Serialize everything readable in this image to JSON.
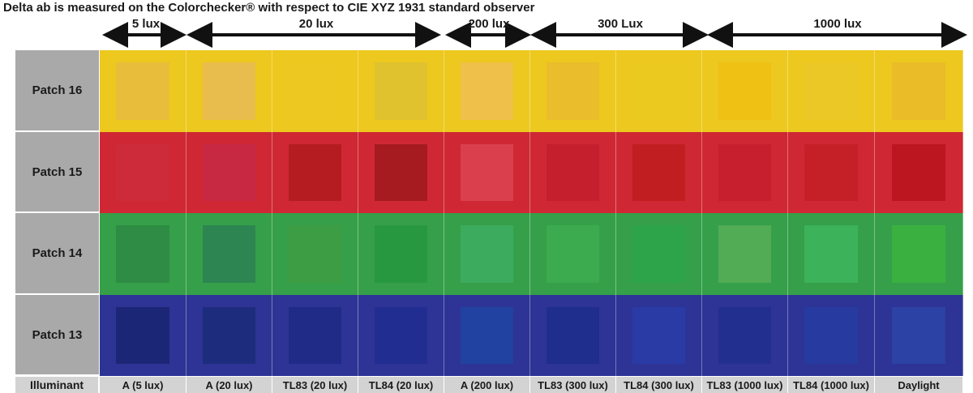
{
  "title": "Delta ab is measured on the Colorchecker® with respect to CIE XYZ 1931 standard observer",
  "lux_groups": [
    "5 lux",
    "20 lux",
    "200 lux",
    "300 Lux",
    "1000 lux"
  ],
  "rows": [
    {
      "label": "Patch 16",
      "bg": "#edc81e",
      "swatches": [
        "#e8bd3b",
        "#e9bd4d",
        "#edc820",
        "#dfc22e",
        "#efc04a",
        "#e9bd2b",
        "#ecc91f",
        "#f0c115",
        "#ecc827",
        "#eabc27"
      ]
    },
    {
      "label": "Patch 15",
      "bg": "#cf2834",
      "swatches": [
        "#cd2a3a",
        "#c82942",
        "#b51c22",
        "#a51b1f",
        "#da3f4d",
        "#c51f2d",
        "#c11e22",
        "#c81f2e",
        "#c51f28",
        "#bc1620"
      ]
    },
    {
      "label": "Patch 14",
      "bg": "#35a049",
      "swatches": [
        "#2e8c44",
        "#2d8551",
        "#3d9d44",
        "#289840",
        "#3cab5d",
        "#3caa4e",
        "#2ea44a",
        "#52ab55",
        "#3cb25a",
        "#3ab041"
      ]
    },
    {
      "label": "Patch 13",
      "bg": "#2d3496",
      "swatches": [
        "#1b2776",
        "#1e2c7e",
        "#202b88",
        "#222d91",
        "#2142a0",
        "#1f2d8d",
        "#2a3ba6",
        "#232f8e",
        "#273aa0",
        "#2c42a4"
      ]
    }
  ],
  "footer_label": "Illuminant",
  "illuminants": [
    "A (5 lux)",
    "A (20 lux)",
    "TL83 (20 lux)",
    "TL84 (20 lux)",
    "A (200 lux)",
    "TL83 (300 lux)",
    "TL84 (300 lux)",
    "TL83 (1000 lux)",
    "TL84 (1000 lux)",
    "Daylight"
  ]
}
